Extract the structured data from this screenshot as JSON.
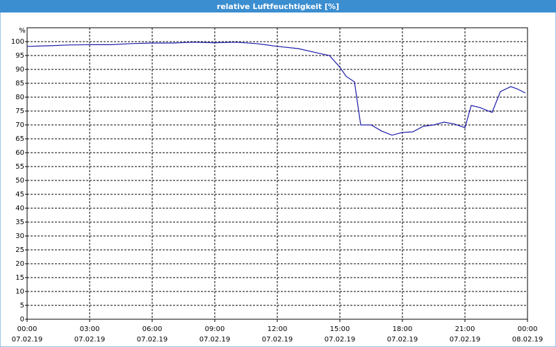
{
  "chart_data": {
    "type": "line",
    "title": "relative Luftfeuchtigkeit [%]",
    "y_label": "%",
    "x": [
      0,
      1,
      2,
      3,
      4,
      5,
      6,
      7,
      8,
      9,
      10,
      11,
      12,
      13,
      14,
      14.5,
      15,
      15.3,
      15.7,
      16,
      16.5,
      17,
      17.5,
      18,
      18.5,
      19,
      19.5,
      20,
      20.5,
      21,
      21.3,
      21.7,
      22.3,
      22.7,
      23.2,
      23.5,
      23.9
    ],
    "series": [
      {
        "name": "relative Luftfeuchtigkeit",
        "color": "#1a1aa8",
        "values": [
          98.3,
          98.5,
          98.8,
          98.9,
          98.9,
          99.3,
          99.5,
          99.5,
          99.8,
          99.6,
          99.8,
          99.3,
          98.3,
          97.5,
          95.8,
          95,
          90.8,
          87.5,
          85.5,
          70,
          70,
          67.8,
          66.3,
          67.3,
          67.5,
          69.5,
          70,
          71,
          70.3,
          69,
          77,
          76.3,
          74.5,
          82,
          83.8,
          83,
          81.5
        ]
      }
    ],
    "xlim": [
      0,
      24
    ],
    "xticks": [
      {
        "value": 0,
        "label": "00:00",
        "date": "07.02.19"
      },
      {
        "value": 3,
        "label": "03:00",
        "date": "07.02.19"
      },
      {
        "value": 6,
        "label": "06:00",
        "date": "07.02.19"
      },
      {
        "value": 9,
        "label": "09:00",
        "date": "07.02.19"
      },
      {
        "value": 12,
        "label": "12:00",
        "date": "07.02.19"
      },
      {
        "value": 15,
        "label": "15:00",
        "date": "07.02.19"
      },
      {
        "value": 18,
        "label": "18:00",
        "date": "07.02.19"
      },
      {
        "value": 21,
        "label": "21:00",
        "date": "07.02.19"
      },
      {
        "value": 24,
        "label": "00:00",
        "date": "08.02.19"
      }
    ],
    "ylim": [
      0,
      105
    ],
    "yticks": [
      0,
      5,
      10,
      15,
      20,
      25,
      30,
      35,
      40,
      45,
      50,
      55,
      60,
      65,
      70,
      75,
      80,
      85,
      90,
      95,
      100
    ],
    "grid": true
  }
}
